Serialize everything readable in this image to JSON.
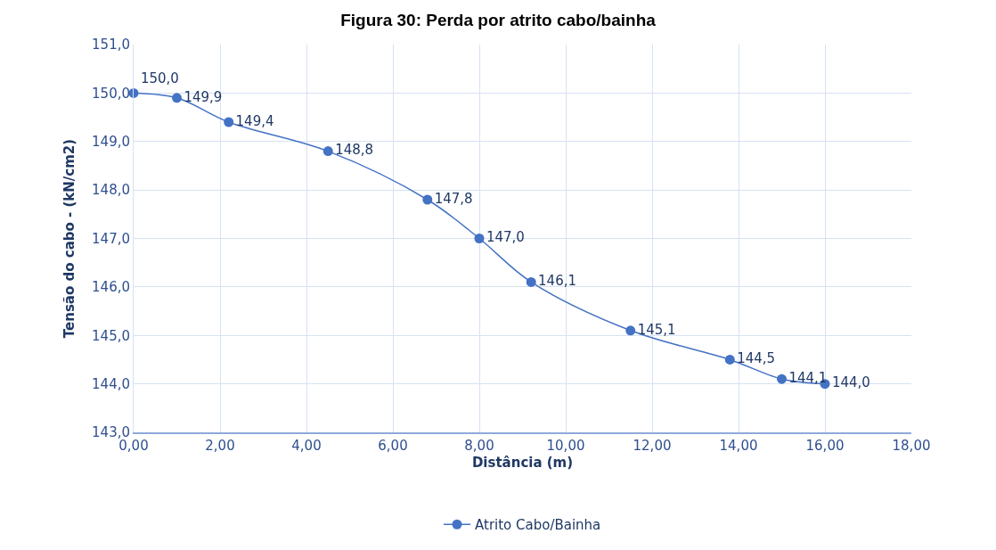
{
  "chart_data": {
    "type": "line",
    "title": "Figura 30: Perda por atrito cabo/bainha",
    "xlabel": "Distância (m)",
    "ylabel": "Tensão do cabo - (kN/cm2)",
    "x": [
      0,
      1.0,
      2.2,
      4.5,
      6.8,
      8.0,
      9.2,
      11.5,
      13.8,
      15.0,
      16.0
    ],
    "series": [
      {
        "name": "Atrito Cabo/Bainha",
        "color": "#4472c4",
        "values": [
          150.0,
          149.9,
          149.4,
          148.8,
          147.8,
          147.0,
          146.1,
          145.1,
          144.5,
          144.1,
          144.0
        ],
        "value_labels": [
          "150,0",
          "149,9",
          "149,4",
          "148,8",
          "147,8",
          "147,0",
          "146,1",
          "145,1",
          "144,5",
          "144,1",
          "144,0"
        ]
      }
    ],
    "xlim": [
      0,
      18
    ],
    "xticks": [
      {
        "value": 0,
        "label": "0,00"
      },
      {
        "value": 2,
        "label": "2,00"
      },
      {
        "value": 4,
        "label": "4,00"
      },
      {
        "value": 6,
        "label": "6,00"
      },
      {
        "value": 8,
        "label": "8,00"
      },
      {
        "value": 10,
        "label": "10,00"
      },
      {
        "value": 12,
        "label": "12,00"
      },
      {
        "value": 14,
        "label": "14,00"
      },
      {
        "value": 16,
        "label": "16,00"
      },
      {
        "value": 18,
        "label": "18,00"
      }
    ],
    "ylim": [
      143,
      151
    ],
    "yticks": [
      {
        "value": 143,
        "label": "143,0"
      },
      {
        "value": 144,
        "label": "144,0"
      },
      {
        "value": 145,
        "label": "145,0"
      },
      {
        "value": 146,
        "label": "146,0"
      },
      {
        "value": 147,
        "label": "147,0"
      },
      {
        "value": 148,
        "label": "148,0"
      },
      {
        "value": 149,
        "label": "149,0"
      },
      {
        "value": 150,
        "label": "150,0"
      },
      {
        "value": 151,
        "label": "151,0"
      }
    ],
    "grid": true,
    "legend": "bottom",
    "marker": "circle",
    "line_style": "solid"
  }
}
